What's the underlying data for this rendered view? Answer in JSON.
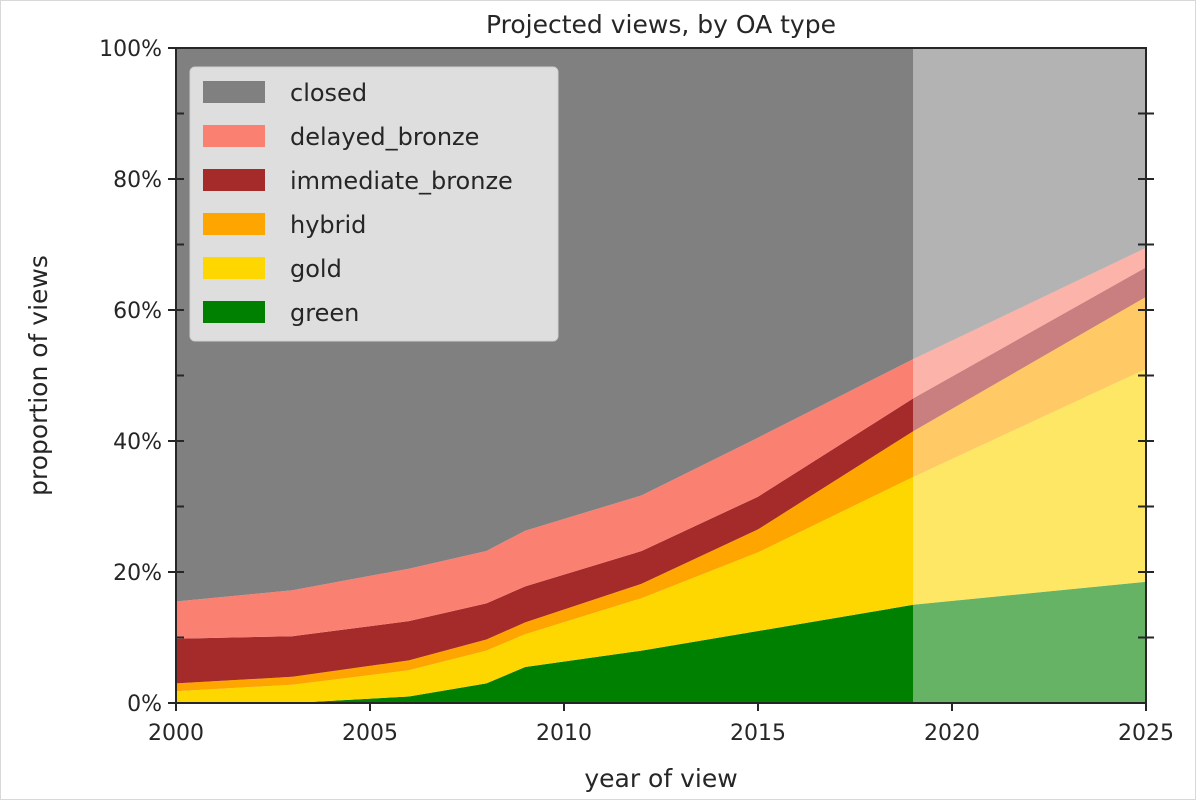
{
  "chart_data": {
    "type": "area",
    "stacked": true,
    "title": "Projected views, by OA type",
    "xlabel": "year of view",
    "ylabel": "proportion of views",
    "xlim": [
      2000,
      2025
    ],
    "ylim": [
      0,
      1
    ],
    "x_ticks": [
      2000,
      2005,
      2010,
      2015,
      2020,
      2025
    ],
    "x_tick_labels": [
      "2000",
      "2005",
      "2010",
      "2015",
      "2020",
      "2025"
    ],
    "y_ticks": [
      0,
      0.2,
      0.4,
      0.6,
      0.8,
      1.0
    ],
    "y_tick_labels": [
      "0%",
      "20%",
      "40%",
      "60%",
      "80%",
      "100%"
    ],
    "projection_start": 2019,
    "legend_position": "top-left",
    "grid": false,
    "x": [
      2000,
      2003,
      2006,
      2008,
      2009,
      2012,
      2015,
      2019,
      2025
    ],
    "series": [
      {
        "name": "green",
        "color": "#008000",
        "values": [
          0.0,
          0.0,
          0.01,
          0.03,
          0.055,
          0.08,
          0.11,
          0.15,
          0.185
        ]
      },
      {
        "name": "gold",
        "color": "#FFD700",
        "values": [
          0.018,
          0.028,
          0.04,
          0.05,
          0.05,
          0.08,
          0.12,
          0.195,
          0.325
        ]
      },
      {
        "name": "hybrid",
        "color": "#FFA500",
        "values": [
          0.012,
          0.012,
          0.015,
          0.017,
          0.018,
          0.022,
          0.035,
          0.07,
          0.11
        ]
      },
      {
        "name": "immediate_bronze",
        "color": "#A52A2A",
        "values": [
          0.068,
          0.062,
          0.06,
          0.055,
          0.055,
          0.05,
          0.05,
          0.05,
          0.045
        ]
      },
      {
        "name": "delayed_bronze",
        "color": "#FA8072",
        "values": [
          0.057,
          0.07,
          0.08,
          0.08,
          0.085,
          0.085,
          0.09,
          0.06,
          0.03
        ]
      },
      {
        "name": "closed",
        "color": "#808080",
        "values": [
          0.845,
          0.828,
          0.795,
          0.768,
          0.737,
          0.683,
          0.595,
          0.475,
          0.305
        ]
      }
    ],
    "legend_order": [
      "closed",
      "delayed_bronze",
      "immediate_bronze",
      "hybrid",
      "gold",
      "green"
    ]
  }
}
